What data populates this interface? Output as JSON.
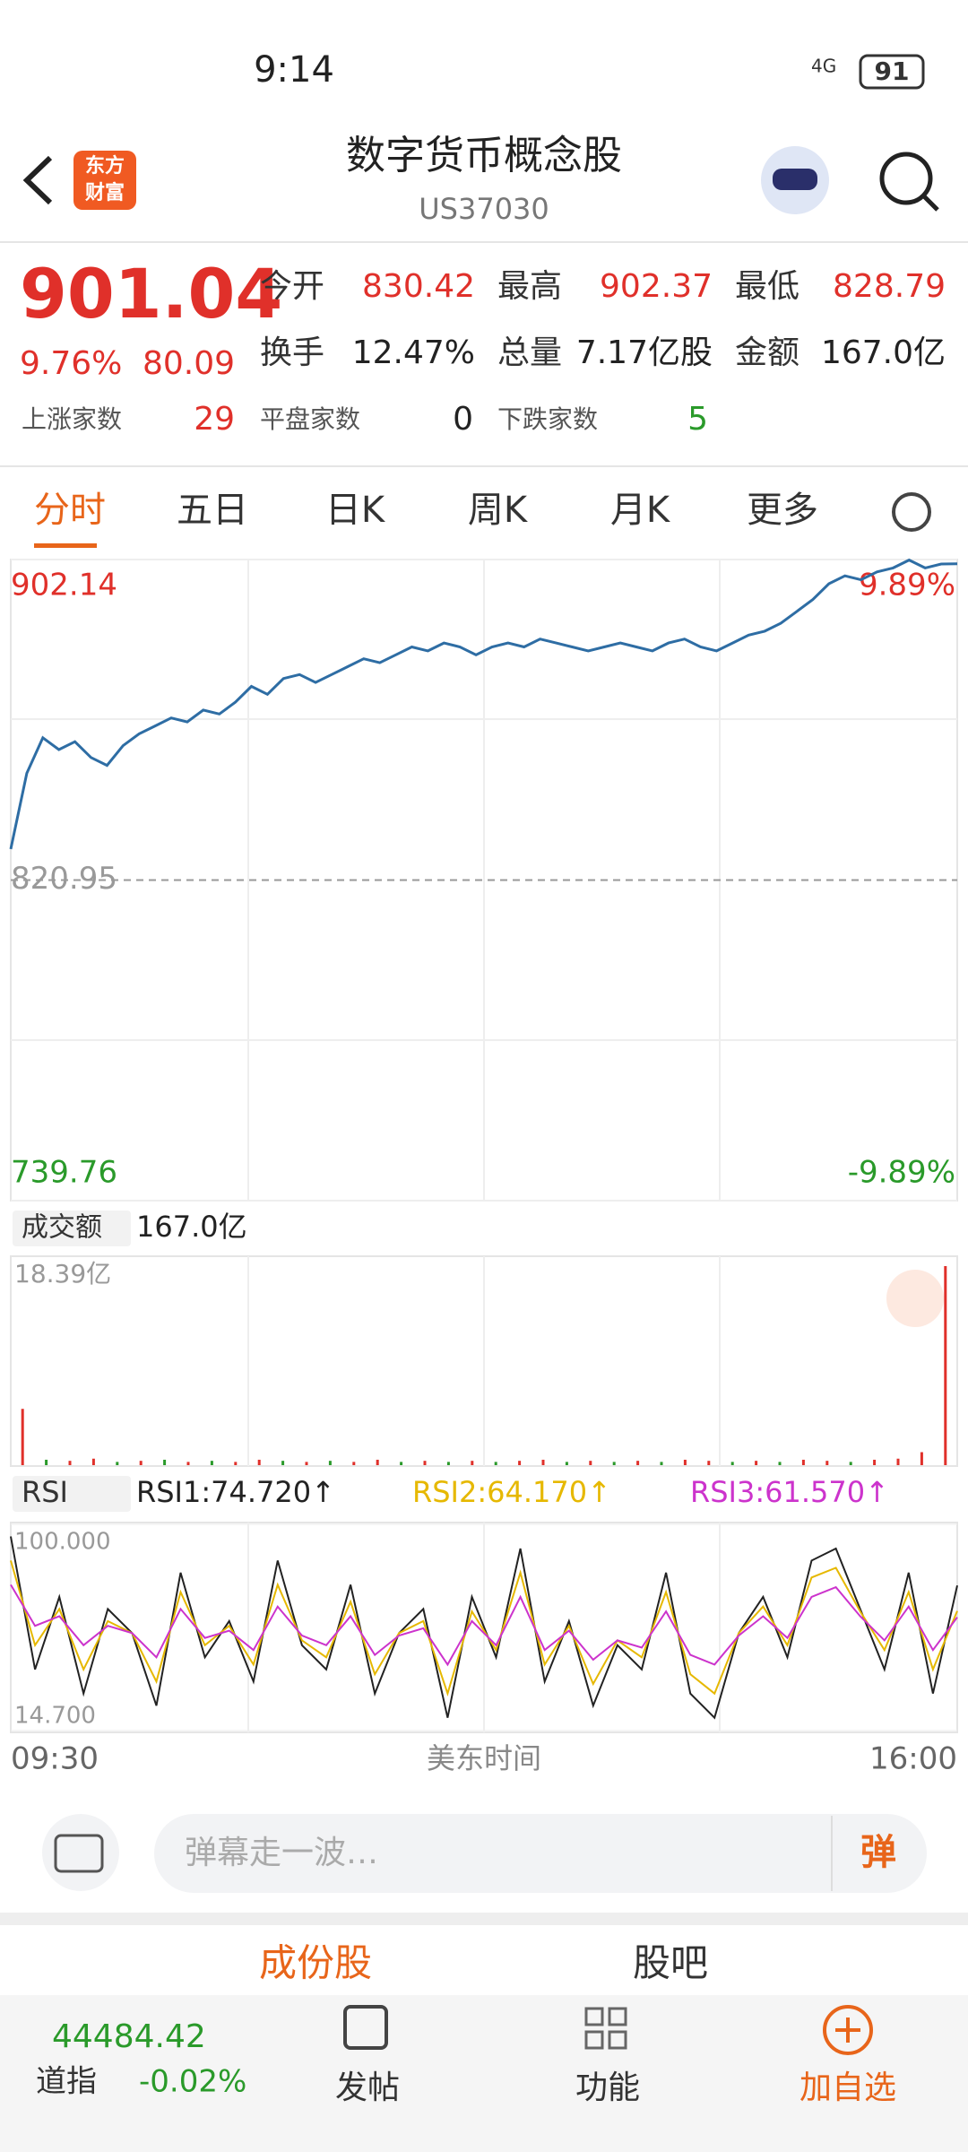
{
  "status_bar": {
    "time": "9:14",
    "network": "4G",
    "battery": "91"
  },
  "header": {
    "logo": [
      "东方",
      "财富"
    ],
    "title": "数字货币概念股",
    "subtitle": "US37030"
  },
  "quote": {
    "price": "901.04",
    "change_pct": "9.76%",
    "change": "80.09",
    "stats": [
      {
        "label": "今开",
        "value": "830.42"
      },
      {
        "label": "最高",
        "value": "902.37"
      },
      {
        "label": "最低",
        "value": "828.79"
      },
      {
        "label": "换手",
        "value": "12.47%"
      },
      {
        "label": "总量",
        "value": "7.17亿股"
      },
      {
        "label": "金额",
        "value": "167.0亿"
      }
    ],
    "breadth": [
      {
        "label": "上涨家数",
        "value": "29"
      },
      {
        "label": "平盘家数",
        "value": "0"
      },
      {
        "label": "下跌家数",
        "value": "5"
      }
    ]
  },
  "tabs": [
    "分时",
    "五日",
    "日K",
    "周K",
    "月K",
    "更多"
  ],
  "price_chart": {
    "type": "line",
    "color": "#2e6da4",
    "ylim": [
      739.76,
      902.14
    ],
    "yticks": [
      739.76,
      820.95,
      902.14
    ],
    "right_labels": [
      "-9.89%",
      "9.89%"
    ],
    "values": [
      828.8,
      848,
      857,
      854,
      856,
      852,
      850,
      855,
      858,
      860,
      862,
      861,
      864,
      863,
      866,
      870,
      868,
      872,
      873,
      871,
      873,
      875,
      877,
      876,
      878,
      880,
      879,
      881,
      880,
      878,
      880,
      881,
      880,
      882,
      881,
      880,
      879,
      880,
      881,
      880,
      879,
      881,
      882,
      880,
      879,
      881,
      883,
      884,
      886,
      889,
      892,
      896,
      898,
      897,
      899,
      900,
      902,
      900,
      901,
      901.04
    ]
  },
  "volume_bar": {
    "label": "成交额",
    "total": "167.0亿"
  },
  "volume_chart": {
    "type": "bar",
    "ylim": [
      0,
      18.39
    ],
    "yticks": [
      {
        "value": 18.39,
        "label": "18.39亿"
      }
    ],
    "values": [
      5.2,
      0.5,
      0.4,
      0.6,
      0.3,
      0.4,
      0.5,
      0.3,
      0.4,
      0.3,
      0.5,
      0.4,
      0.3,
      0.4,
      0.3,
      0.5,
      0.3,
      0.4,
      0.3,
      0.4,
      0.3,
      0.4,
      0.5,
      0.3,
      0.4,
      0.3,
      0.4,
      0.3,
      0.5,
      0.4,
      0.3,
      0.4,
      0.3,
      0.5,
      0.4,
      0.3,
      0.5,
      0.6,
      1.2,
      18.39
    ],
    "colors": [
      "#e0302a",
      "#2a9a2a",
      "#e0302a",
      "#e0302a",
      "#2a9a2a",
      "#e0302a",
      "#2a9a2a",
      "#e0302a",
      "#2a9a2a",
      "#e0302a",
      "#e0302a",
      "#2a9a2a",
      "#e0302a",
      "#2a9a2a",
      "#e0302a",
      "#e0302a",
      "#2a9a2a",
      "#e0302a",
      "#2a9a2a",
      "#e0302a",
      "#2a9a2a",
      "#e0302a",
      "#e0302a",
      "#2a9a2a",
      "#e0302a",
      "#2a9a2a",
      "#e0302a",
      "#2a9a2a",
      "#e0302a",
      "#e0302a",
      "#2a9a2a",
      "#e0302a",
      "#2a9a2a",
      "#e0302a",
      "#e0302a",
      "#2a9a2a",
      "#e0302a",
      "#e0302a",
      "#e0302a",
      "#e0302a"
    ]
  },
  "rsi_bar": {
    "label": "RSI",
    "items": [
      "RSI1:74.720↑",
      "RSI2:64.170↑",
      "RSI3:61.570↑"
    ]
  },
  "rsi_chart": {
    "type": "line",
    "ylim": [
      14.7,
      100
    ],
    "yticks": [
      {
        "value": 100,
        "label": "100.000"
      },
      {
        "value": 14.7,
        "label": "14.700"
      }
    ],
    "series": [
      {
        "name": "RSI1",
        "color": "#222222",
        "values": [
          95,
          40,
          70,
          30,
          65,
          55,
          25,
          80,
          45,
          60,
          35,
          85,
          50,
          40,
          75,
          30,
          55,
          65,
          20,
          70,
          45,
          90,
          35,
          60,
          25,
          50,
          40,
          80,
          30,
          20,
          55,
          70,
          45,
          85,
          90,
          65,
          40,
          80,
          30,
          74.72
        ]
      },
      {
        "name": "RSI2",
        "color": "#e6b800",
        "values": [
          85,
          50,
          65,
          40,
          60,
          55,
          35,
          72,
          50,
          58,
          42,
          75,
          52,
          45,
          68,
          38,
          55,
          60,
          30,
          64,
          48,
          80,
          42,
          58,
          34,
          52,
          45,
          72,
          38,
          30,
          55,
          66,
          50,
          78,
          82,
          64,
          48,
          72,
          40,
          64.17
        ]
      },
      {
        "name": "RSI3",
        "color": "#cc33cc",
        "values": [
          75,
          58,
          62,
          50,
          58,
          55,
          45,
          65,
          53,
          56,
          48,
          66,
          54,
          50,
          62,
          46,
          54,
          57,
          42,
          60,
          50,
          70,
          48,
          56,
          44,
          52,
          49,
          64,
          46,
          42,
          54,
          62,
          53,
          70,
          74,
          62,
          52,
          66,
          48,
          61.57
        ]
      }
    ]
  },
  "time_axis": {
    "start": "09:30",
    "middle": "美东时间",
    "end": "16:00"
  },
  "danmu": {
    "placeholder": "弹幕走一波…",
    "button": "弹"
  },
  "sub_tabs": [
    "成份股",
    "股吧"
  ],
  "bottom_nav": {
    "index_value": "44484.42",
    "index_name": "道指",
    "index_change": "-0.02%",
    "items": [
      "发帖",
      "功能",
      "加自选"
    ]
  }
}
